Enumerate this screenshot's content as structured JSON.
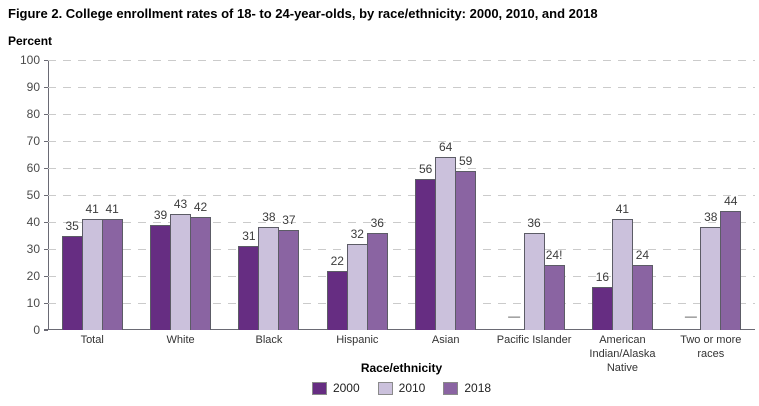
{
  "figure": {
    "title": "Figure 2. College enrollment rates of 18- to 24-year-olds, by race/ethnicity: 2000, 2010, and 2018",
    "y_axis_title": "Percent",
    "x_axis_title": "Race/ethnicity"
  },
  "colors": {
    "series_2000": "#662d82",
    "series_2010": "#cbc1dc",
    "series_2018": "#8a64a2",
    "bar_border": "#5c5c66",
    "gridline": "#cbcbcb",
    "axis_line": "#6a6a74"
  },
  "chart_data": {
    "type": "bar",
    "title": "Figure 2. College enrollment rates of 18- to 24-year-olds, by race/ethnicity: 2000, 2010, and 2018",
    "xlabel": "Race/ethnicity",
    "ylabel": "Percent",
    "ylim": [
      0,
      100
    ],
    "ytick_step": 10,
    "grid": "horizontal-dashed",
    "legend_position": "bottom-center",
    "missing_value_symbol": "—",
    "categories": [
      "Total",
      "White",
      "Black",
      "Hispanic",
      "Asian",
      "Pacific Islander",
      "American Indian/Alaska Native",
      "Two or more races"
    ],
    "series": [
      {
        "name": "2000",
        "color": "#662d82",
        "values": [
          35,
          39,
          31,
          22,
          56,
          null,
          16,
          null
        ],
        "display_labels": [
          "35",
          "39",
          "31",
          "22",
          "56",
          "—",
          "16",
          "—"
        ]
      },
      {
        "name": "2010",
        "color": "#cbc1dc",
        "values": [
          41,
          43,
          38,
          32,
          64,
          36,
          41,
          38
        ],
        "display_labels": [
          "41",
          "43",
          "38",
          "32",
          "64",
          "36",
          "41",
          "38"
        ]
      },
      {
        "name": "2018",
        "color": "#8a64a2",
        "values": [
          41,
          42,
          37,
          36,
          59,
          24,
          24,
          44
        ],
        "display_labels": [
          "41",
          "42",
          "37",
          "36",
          "59",
          "24!",
          "24",
          "44"
        ]
      }
    ]
  }
}
